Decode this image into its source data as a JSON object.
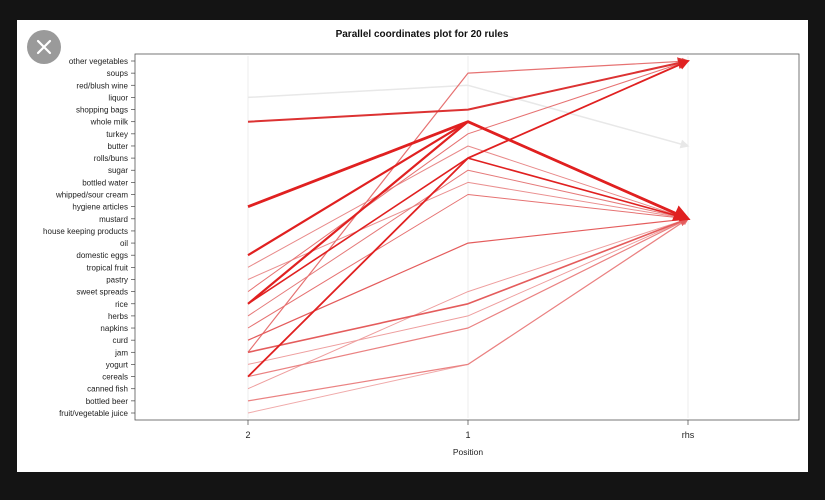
{
  "ui": {
    "close_icon": "close-icon",
    "background": "#141414",
    "panel_color": "#ffffff"
  },
  "chart_data": {
    "type": "line",
    "subtype": "parallel-coordinates",
    "title": "Parallel coordinates plot for 20 rules",
    "xlabel": "Position",
    "x_categories": [
      "2",
      "1",
      "rhs"
    ],
    "items": [
      "other vegetables",
      "soups",
      "red/blush wine",
      "liquor",
      "shopping bags",
      "whole milk",
      "turkey",
      "butter",
      "rolls/buns",
      "sugar",
      "bottled water",
      "whipped/sour cream",
      "hygiene articles",
      "mustard",
      "house keeping products",
      "oil",
      "domestic eggs",
      "tropical fruit",
      "pastry",
      "sweet spreads",
      "rice",
      "herbs",
      "napkins",
      "curd",
      "jam",
      "yogurt",
      "cereals",
      "canned fish",
      "bottled beer",
      "fruit/vegetable juice"
    ],
    "grid": "vertical",
    "rules": [
      {
        "values": [
          3,
          2,
          7
        ],
        "color": "#e8e8e8",
        "width": 1.5
      },
      {
        "values": [
          5,
          4,
          0
        ],
        "color": "#dc3232",
        "width": 2.0
      },
      {
        "values": [
          12,
          5,
          13
        ],
        "color": "#e02020",
        "width": 2.8
      },
      {
        "values": [
          16,
          5,
          13
        ],
        "color": "#e02020",
        "width": 2.2
      },
      {
        "values": [
          20,
          5,
          13
        ],
        "color": "#e02020",
        "width": 2.2
      },
      {
        "values": [
          26,
          8,
          0
        ],
        "color": "#e02020",
        "width": 1.8
      },
      {
        "values": [
          24,
          1,
          0
        ],
        "color": "#e67272",
        "width": 1.2
      },
      {
        "values": [
          20,
          8,
          13
        ],
        "color": "#e02020",
        "width": 1.6
      },
      {
        "values": [
          17,
          7,
          13
        ],
        "color": "#e88a8a",
        "width": 1.0
      },
      {
        "values": [
          19,
          6,
          0
        ],
        "color": "#e67272",
        "width": 1.0
      },
      {
        "values": [
          21,
          9,
          13
        ],
        "color": "#e57a7a",
        "width": 1.0
      },
      {
        "values": [
          18,
          10,
          13
        ],
        "color": "#ea9090",
        "width": 1.0
      },
      {
        "values": [
          22,
          11,
          13
        ],
        "color": "#e67272",
        "width": 1.0
      },
      {
        "values": [
          23,
          15,
          13
        ],
        "color": "#e45c5c",
        "width": 1.2
      },
      {
        "values": [
          25,
          21,
          13
        ],
        "color": "#ee9e9e",
        "width": 1.0
      },
      {
        "values": [
          24,
          20,
          13
        ],
        "color": "#e45c5c",
        "width": 1.6
      },
      {
        "values": [
          27,
          19,
          13
        ],
        "color": "#ee9e9e",
        "width": 1.0
      },
      {
        "values": [
          26,
          22,
          13
        ],
        "color": "#ea8282",
        "width": 1.2
      },
      {
        "values": [
          28,
          25,
          13
        ],
        "color": "#ea8282",
        "width": 1.2
      },
      {
        "values": [
          29,
          25,
          13
        ],
        "color": "#f0aaaa",
        "width": 1.0
      }
    ]
  }
}
